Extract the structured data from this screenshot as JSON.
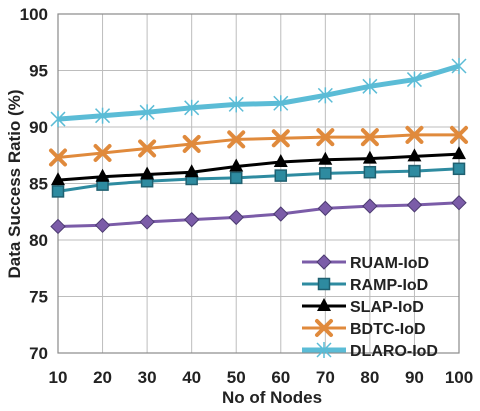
{
  "chart_data": {
    "type": "line",
    "title": "",
    "xlabel": "No of Nodes",
    "ylabel": "Data Success Ratio (%)",
    "x": [
      10,
      20,
      30,
      40,
      50,
      60,
      70,
      80,
      90,
      100
    ],
    "xticks": [
      "10",
      "20",
      "30",
      "40",
      "50",
      "60",
      "70",
      "80",
      "90",
      "100"
    ],
    "ylim": [
      70,
      100
    ],
    "yticks": [
      "70",
      "75",
      "80",
      "85",
      "90",
      "95",
      "100"
    ],
    "grid": "on",
    "legend_position": "bottom-right",
    "series": [
      {
        "name": "RUAM-IoD",
        "color": "#7b5ca8",
        "marker": "diamond",
        "values": [
          81.2,
          81.3,
          81.6,
          81.8,
          82.0,
          82.3,
          82.8,
          83.0,
          83.1,
          83.3
        ]
      },
      {
        "name": "RAMP-IoD",
        "color": "#2e8ba0",
        "marker": "square",
        "values": [
          84.3,
          84.9,
          85.2,
          85.4,
          85.5,
          85.7,
          85.9,
          86.0,
          86.1,
          86.3
        ]
      },
      {
        "name": "SLAP-IoD",
        "color": "#000000",
        "marker": "triangle",
        "values": [
          85.3,
          85.6,
          85.8,
          86.0,
          86.5,
          86.9,
          87.1,
          87.2,
          87.4,
          87.6
        ]
      },
      {
        "name": "BDTC-IoD",
        "color": "#e08a3c",
        "marker": "x",
        "values": [
          87.3,
          87.7,
          88.1,
          88.5,
          88.9,
          89.0,
          89.1,
          89.1,
          89.3,
          89.3
        ]
      },
      {
        "name": "DLARO-IoD",
        "color": "#5bbcd6",
        "marker": "star",
        "values": [
          90.7,
          91.0,
          91.3,
          91.7,
          92.0,
          92.1,
          92.8,
          93.6,
          94.2,
          95.4
        ]
      }
    ]
  }
}
